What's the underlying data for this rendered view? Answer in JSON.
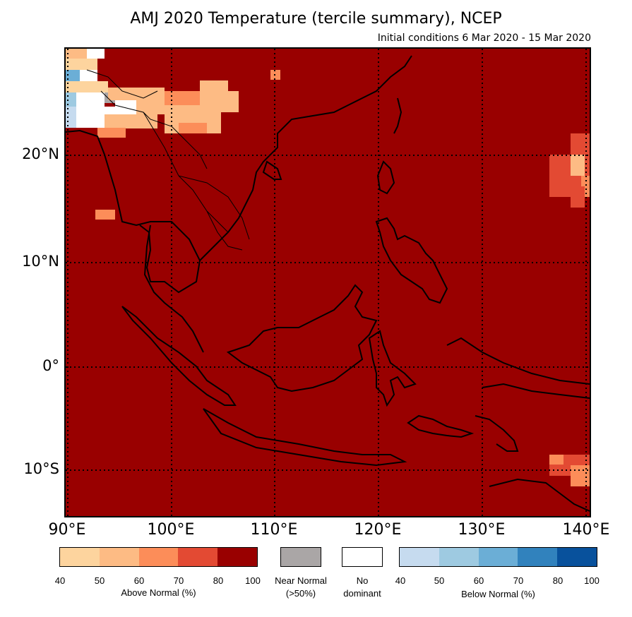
{
  "title": "AMJ 2020 Temperature (tercile summary), NCEP",
  "subtitle": "Initial conditions 6 Mar 2020 - 15 Mar 2020",
  "map": {
    "background_color": "#990000",
    "lat_labels": [
      "20°N",
      "10°N",
      "0°",
      "10°S"
    ],
    "lon_labels": [
      "90°E",
      "100°E",
      "110°E",
      "120°E",
      "130°E",
      "140°E"
    ]
  },
  "legend": {
    "above": {
      "caption": "Above Normal (%)",
      "colors": [
        "#fdd49e",
        "#fdbb84",
        "#fc8d59",
        "#e34a33",
        "#990000"
      ],
      "ticks": [
        "40",
        "50",
        "60",
        "70",
        "80",
        "100"
      ]
    },
    "near": {
      "caption_line1": "Near Normal",
      "caption_line2": "(>50%)",
      "color": "#aaa6a6"
    },
    "none": {
      "caption_line1": "No",
      "caption_line2": "dominant",
      "color": "#ffffff"
    },
    "below": {
      "caption": "Below Normal (%)",
      "colors": [
        "#c6dbef",
        "#9ecae1",
        "#6baed6",
        "#3182bd",
        "#08519c"
      ],
      "ticks": [
        "40",
        "50",
        "60",
        "70",
        "80",
        "100"
      ]
    }
  }
}
